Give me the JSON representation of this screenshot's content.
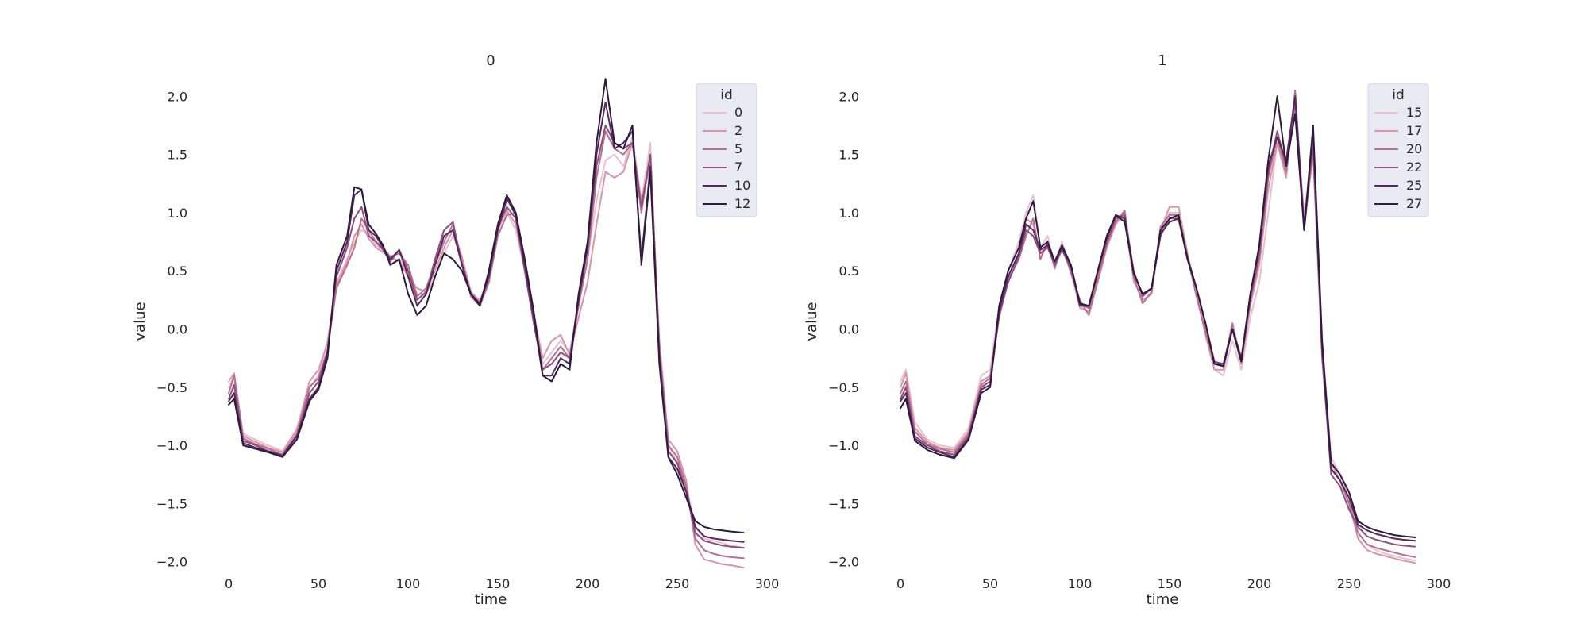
{
  "chart_data": [
    {
      "type": "line",
      "title": "0",
      "xlabel": "time",
      "ylabel": "value",
      "xlim": [
        -8,
        300
      ],
      "ylim": [
        -2.07,
        2.2
      ],
      "xticks": [
        0,
        50,
        100,
        150,
        200,
        250,
        300
      ],
      "yticks": [
        -2.0,
        -1.5,
        -1.0,
        -0.5,
        0.0,
        0.5,
        1.0,
        1.5,
        2.0
      ],
      "ytick_labels": [
        "−2.0",
        "−1.5",
        "−1.0",
        "−0.5",
        "0.0",
        "0.5",
        "1.0",
        "1.5",
        "2.0"
      ],
      "grid": false,
      "legend": {
        "title": "id",
        "placement": "top-right",
        "entries": [
          "0",
          "2",
          "5",
          "7",
          "10",
          "12"
        ]
      },
      "x": [
        0,
        3,
        8,
        15,
        22,
        30,
        38,
        45,
        50,
        55,
        60,
        66,
        70,
        74,
        78,
        82,
        86,
        90,
        95,
        100,
        105,
        110,
        115,
        120,
        125,
        130,
        135,
        140,
        145,
        150,
        155,
        160,
        165,
        170,
        175,
        180,
        185,
        190,
        195,
        200,
        205,
        210,
        215,
        220,
        225,
        230,
        235,
        240,
        245,
        250,
        255,
        260,
        265,
        270,
        275,
        280,
        287
      ],
      "series": [
        {
          "name": "0",
          "color": "#e9c0cd",
          "values": [
            -0.5,
            -0.4,
            -0.9,
            -0.95,
            -1.0,
            -1.05,
            -0.85,
            -0.5,
            -0.4,
            -0.1,
            0.4,
            0.6,
            0.75,
            0.85,
            0.82,
            0.72,
            0.68,
            0.6,
            0.6,
            0.5,
            0.3,
            0.3,
            0.45,
            0.65,
            0.8,
            0.6,
            0.3,
            0.25,
            0.45,
            0.9,
            1.0,
            0.85,
            0.5,
            0.1,
            -0.3,
            -0.2,
            -0.1,
            -0.2,
            0.2,
            0.6,
            1.1,
            1.45,
            1.5,
            1.4,
            1.65,
            1.1,
            1.6,
            -0.2,
            -1.0,
            -1.15,
            -1.35,
            -1.7,
            -1.8,
            -1.82,
            -1.84,
            -1.86,
            -1.88
          ]
        },
        {
          "name": "2",
          "color": "#d895a8",
          "values": [
            -0.45,
            -0.38,
            -0.92,
            -0.97,
            -1.02,
            -1.06,
            -0.87,
            -0.45,
            -0.35,
            -0.12,
            0.38,
            0.58,
            0.8,
            0.9,
            0.78,
            0.7,
            0.66,
            0.62,
            0.58,
            0.45,
            0.35,
            0.32,
            0.5,
            0.7,
            0.85,
            0.62,
            0.32,
            0.24,
            0.42,
            0.85,
            1.02,
            0.9,
            0.55,
            0.12,
            -0.25,
            -0.1,
            -0.05,
            -0.22,
            0.1,
            0.4,
            0.9,
            1.35,
            1.3,
            1.35,
            1.6,
            1.1,
            1.4,
            -0.1,
            -0.95,
            -1.05,
            -1.3,
            -1.85,
            -1.98,
            -2.0,
            -2.02,
            -2.03,
            -2.05
          ]
        },
        {
          "name": "5",
          "color": "#b8708f",
          "values": [
            -0.55,
            -0.4,
            -0.94,
            -0.99,
            -1.03,
            -1.08,
            -0.9,
            -0.5,
            -0.42,
            -0.18,
            0.35,
            0.55,
            0.7,
            0.95,
            0.85,
            0.75,
            0.7,
            0.62,
            0.65,
            0.55,
            0.28,
            0.35,
            0.55,
            0.75,
            0.9,
            0.58,
            0.28,
            0.2,
            0.4,
            0.8,
            0.98,
            1.0,
            0.6,
            0.15,
            -0.35,
            -0.25,
            -0.15,
            -0.25,
            0.2,
            0.6,
            1.3,
            1.7,
            1.55,
            1.5,
            1.6,
            1.0,
            1.5,
            -0.15,
            -1.0,
            -1.1,
            -1.35,
            -1.8,
            -1.9,
            -1.93,
            -1.95,
            -1.96,
            -1.97
          ]
        },
        {
          "name": "7",
          "color": "#8d4f7e",
          "values": [
            -0.6,
            -0.48,
            -0.96,
            -1.0,
            -1.05,
            -1.08,
            -0.92,
            -0.55,
            -0.45,
            -0.2,
            0.45,
            0.7,
            0.95,
            1.05,
            0.8,
            0.75,
            0.68,
            0.58,
            0.68,
            0.5,
            0.25,
            0.32,
            0.6,
            0.85,
            0.92,
            0.55,
            0.3,
            0.22,
            0.45,
            0.88,
            1.05,
            0.95,
            0.5,
            0.05,
            -0.35,
            -0.3,
            -0.2,
            -0.25,
            0.25,
            0.7,
            1.4,
            1.75,
            1.6,
            1.55,
            1.6,
            1.05,
            1.5,
            -0.2,
            -1.05,
            -1.15,
            -1.4,
            -1.75,
            -1.82,
            -1.84,
            -1.86,
            -1.87,
            -1.88
          ]
        },
        {
          "name": "10",
          "color": "#552a5a",
          "values": [
            -0.62,
            -0.55,
            -0.98,
            -1.02,
            -1.05,
            -1.09,
            -0.92,
            -0.6,
            -0.5,
            -0.2,
            0.5,
            0.75,
            1.15,
            1.2,
            0.85,
            0.8,
            0.7,
            0.6,
            0.68,
            0.45,
            0.2,
            0.3,
            0.55,
            0.8,
            0.85,
            0.55,
            0.3,
            0.22,
            0.45,
            0.85,
            1.12,
            0.98,
            0.55,
            0.1,
            -0.4,
            -0.4,
            -0.25,
            -0.3,
            0.25,
            0.7,
            1.5,
            1.95,
            1.55,
            1.6,
            1.7,
            0.6,
            1.4,
            -0.25,
            -1.1,
            -1.2,
            -1.4,
            -1.7,
            -1.78,
            -1.8,
            -1.81,
            -1.82,
            -1.83
          ]
        },
        {
          "name": "12",
          "color": "#2b1b3e",
          "values": [
            -0.65,
            -0.6,
            -1.0,
            -1.03,
            -1.06,
            -1.1,
            -0.95,
            -0.62,
            -0.52,
            -0.25,
            0.55,
            0.8,
            1.22,
            1.2,
            0.9,
            0.82,
            0.72,
            0.55,
            0.6,
            0.3,
            0.12,
            0.2,
            0.45,
            0.65,
            0.6,
            0.5,
            0.3,
            0.2,
            0.5,
            0.9,
            1.15,
            1.0,
            0.6,
            0.15,
            -0.4,
            -0.45,
            -0.3,
            -0.35,
            0.3,
            0.75,
            1.6,
            2.15,
            1.6,
            1.55,
            1.75,
            0.55,
            1.35,
            -0.3,
            -1.1,
            -1.25,
            -1.45,
            -1.65,
            -1.7,
            -1.72,
            -1.73,
            -1.74,
            -1.75
          ]
        }
      ]
    },
    {
      "type": "line",
      "title": "1",
      "xlabel": "time",
      "ylabel": "value",
      "xlim": [
        -8,
        300
      ],
      "ylim": [
        -2.07,
        2.2
      ],
      "xticks": [
        0,
        50,
        100,
        150,
        200,
        250,
        300
      ],
      "yticks": [
        -2.0,
        -1.5,
        -1.0,
        -0.5,
        0.0,
        0.5,
        1.0,
        1.5,
        2.0
      ],
      "ytick_labels": [
        "−2.0",
        "−1.5",
        "−1.0",
        "−0.5",
        "0.0",
        "0.5",
        "1.0",
        "1.5",
        "2.0"
      ],
      "grid": false,
      "legend": {
        "title": "id",
        "placement": "top-right",
        "entries": [
          "15",
          "17",
          "20",
          "22",
          "25",
          "27"
        ]
      },
      "x": [
        0,
        3,
        8,
        15,
        22,
        30,
        38,
        45,
        50,
        55,
        60,
        66,
        70,
        74,
        78,
        82,
        86,
        90,
        95,
        100,
        105,
        110,
        115,
        120,
        125,
        130,
        135,
        140,
        145,
        150,
        155,
        160,
        165,
        170,
        175,
        180,
        185,
        190,
        195,
        200,
        205,
        210,
        215,
        220,
        225,
        230,
        235,
        240,
        245,
        250,
        255,
        260,
        265,
        270,
        275,
        280,
        287
      ],
      "series": [
        {
          "name": "15",
          "color": "#e9c0cd",
          "values": [
            -0.45,
            -0.35,
            -0.8,
            -0.95,
            -1.0,
            -1.02,
            -0.85,
            -0.4,
            -0.35,
            0.2,
            0.5,
            0.75,
            1.0,
            1.15,
            0.7,
            0.8,
            0.55,
            0.75,
            0.5,
            0.2,
            0.15,
            0.45,
            0.7,
            0.95,
            0.95,
            0.4,
            0.3,
            0.35,
            0.85,
            1.0,
            1.0,
            0.6,
            0.3,
            0.0,
            -0.35,
            -0.4,
            -0.1,
            -0.35,
            0.1,
            0.4,
            1.0,
            1.6,
            1.35,
            1.9,
            1.0,
            1.55,
            -0.1,
            -1.1,
            -1.25,
            -1.45,
            -1.75,
            -1.85,
            -1.9,
            -1.93,
            -1.95,
            -1.97,
            -1.99
          ]
        },
        {
          "name": "17",
          "color": "#d895a8",
          "values": [
            -0.5,
            -0.38,
            -0.85,
            -0.97,
            -1.02,
            -1.04,
            -0.88,
            -0.45,
            -0.4,
            0.15,
            0.45,
            0.65,
            0.95,
            0.9,
            0.65,
            0.72,
            0.55,
            0.7,
            0.5,
            0.18,
            0.15,
            0.4,
            0.7,
            0.9,
            1.0,
            0.42,
            0.25,
            0.3,
            0.85,
            1.05,
            1.05,
            0.65,
            0.3,
            -0.05,
            -0.35,
            -0.35,
            0.0,
            -0.3,
            0.2,
            0.55,
            1.2,
            1.6,
            1.3,
            2.0,
            0.9,
            1.5,
            -0.2,
            -1.15,
            -1.3,
            -1.5,
            -1.8,
            -1.9,
            -1.93,
            -1.95,
            -1.97,
            -1.99,
            -2.01
          ]
        },
        {
          "name": "20",
          "color": "#b8708f",
          "values": [
            -0.55,
            -0.45,
            -0.88,
            -0.99,
            -1.03,
            -1.06,
            -0.9,
            -0.48,
            -0.42,
            0.1,
            0.42,
            0.6,
            0.8,
            0.95,
            0.6,
            0.75,
            0.52,
            0.72,
            0.48,
            0.25,
            0.12,
            0.42,
            0.72,
            0.92,
            1.02,
            0.45,
            0.22,
            0.32,
            0.88,
            0.98,
            0.98,
            0.62,
            0.28,
            -0.02,
            -0.3,
            -0.32,
            0.05,
            -0.28,
            0.25,
            0.6,
            1.3,
            1.65,
            1.35,
            2.05,
            0.85,
            1.55,
            -0.25,
            -1.2,
            -1.3,
            -1.5,
            -1.75,
            -1.85,
            -1.88,
            -1.9,
            -1.92,
            -1.94,
            -1.96
          ]
        },
        {
          "name": "22",
          "color": "#8d4f7e",
          "values": [
            -0.6,
            -0.5,
            -0.92,
            -1.0,
            -1.05,
            -1.08,
            -0.92,
            -0.5,
            -0.45,
            0.12,
            0.4,
            0.62,
            0.85,
            0.8,
            0.65,
            0.7,
            0.55,
            0.68,
            0.52,
            0.22,
            0.18,
            0.48,
            0.75,
            0.95,
            0.98,
            0.5,
            0.28,
            0.35,
            0.8,
            0.95,
            0.95,
            0.62,
            0.35,
            0.05,
            -0.28,
            -0.3,
            0.0,
            -0.25,
            0.25,
            0.65,
            1.35,
            1.7,
            1.4,
            1.95,
            0.9,
            1.6,
            -0.2,
            -1.25,
            -1.35,
            -1.55,
            -1.7,
            -1.78,
            -1.81,
            -1.83,
            -1.85,
            -1.86,
            -1.87
          ]
        },
        {
          "name": "25",
          "color": "#552a5a",
          "values": [
            -0.62,
            -0.55,
            -0.94,
            -1.02,
            -1.06,
            -1.1,
            -0.94,
            -0.52,
            -0.48,
            0.15,
            0.45,
            0.65,
            0.9,
            0.85,
            0.68,
            0.72,
            0.58,
            0.7,
            0.55,
            0.2,
            0.2,
            0.5,
            0.78,
            0.98,
            0.95,
            0.48,
            0.3,
            0.35,
            0.82,
            0.92,
            0.95,
            0.6,
            0.35,
            0.05,
            -0.3,
            -0.3,
            0.0,
            -0.25,
            0.3,
            0.7,
            1.4,
            1.65,
            1.45,
            2.0,
            0.85,
            1.7,
            -0.15,
            -1.2,
            -1.3,
            -1.45,
            -1.68,
            -1.73,
            -1.76,
            -1.78,
            -1.8,
            -1.81,
            -1.82
          ]
        },
        {
          "name": "27",
          "color": "#2b1b3e",
          "values": [
            -0.68,
            -0.6,
            -0.96,
            -1.04,
            -1.08,
            -1.11,
            -0.95,
            -0.55,
            -0.5,
            0.2,
            0.5,
            0.7,
            0.95,
            1.1,
            0.7,
            0.75,
            0.58,
            0.72,
            0.55,
            0.22,
            0.2,
            0.5,
            0.8,
            0.98,
            0.92,
            0.48,
            0.3,
            0.35,
            0.85,
            0.95,
            0.98,
            0.6,
            0.35,
            0.05,
            -0.3,
            -0.32,
            0.0,
            -0.28,
            0.3,
            0.72,
            1.45,
            2.0,
            1.4,
            1.85,
            0.85,
            1.75,
            -0.1,
            -1.15,
            -1.25,
            -1.4,
            -1.65,
            -1.7,
            -1.73,
            -1.75,
            -1.77,
            -1.78,
            -1.79
          ]
        }
      ]
    }
  ]
}
